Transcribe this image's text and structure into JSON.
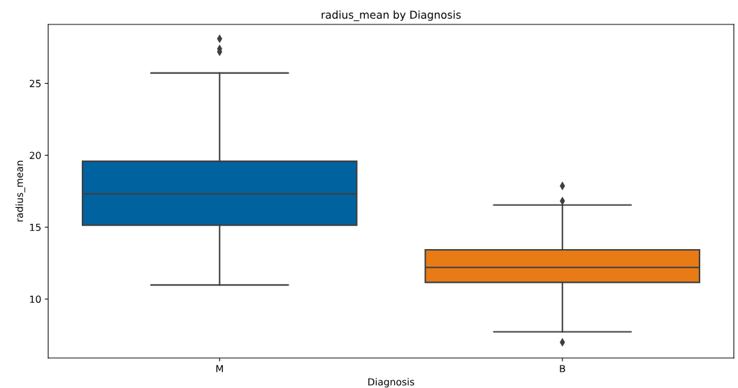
{
  "chart_data": {
    "type": "box",
    "title": "radius_mean by Diagnosis",
    "xlabel": "Diagnosis",
    "ylabel": "radius_mean",
    "categories": [
      "M",
      "B"
    ],
    "series": [
      {
        "colors": [
          "#0063a0",
          "#e87b16"
        ],
        "boxes": [
          {
            "low": 10.98,
            "q1": 15.13,
            "median": 17.31,
            "q3": 19.58,
            "high": 25.72,
            "outliers": [
              28.1,
              27.4,
              27.2
            ]
          },
          {
            "low": 7.72,
            "q1": 11.16,
            "median": 12.2,
            "q3": 13.42,
            "high": 16.54,
            "outliers": [
              17.87,
              16.82,
              6.99
            ]
          }
        ]
      }
    ],
    "ylim": [
      5.9,
      29.1
    ],
    "yticks": [
      10,
      15,
      20,
      25
    ],
    "grid": false,
    "legend": false
  }
}
